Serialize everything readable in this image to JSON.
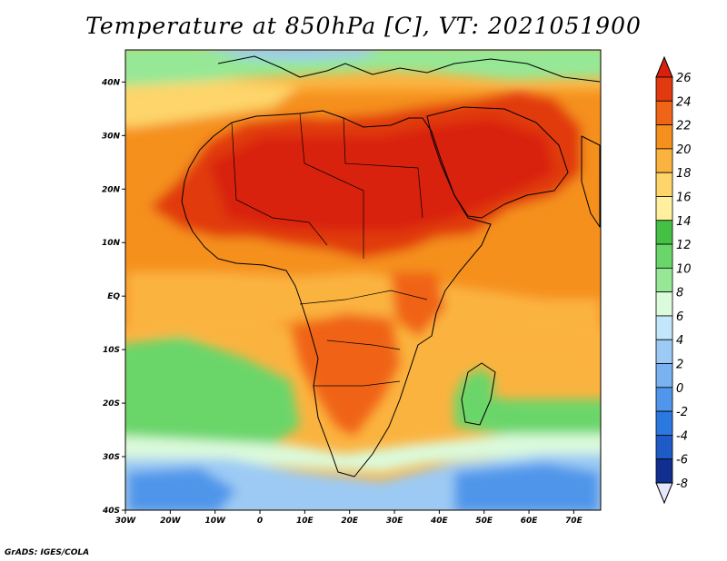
{
  "title": "Temperature at 850hPa [C], VT: 2021051900",
  "credit": "GrADS: IGES/COLA",
  "map": {
    "lon_range": [
      -30,
      76
    ],
    "lat_range": [
      -40,
      46
    ],
    "lat_ticks": [
      {
        "value": 40,
        "label": "40N"
      },
      {
        "value": 30,
        "label": "30N"
      },
      {
        "value": 20,
        "label": "20N"
      },
      {
        "value": 10,
        "label": "10N"
      },
      {
        "value": 0,
        "label": "EQ"
      },
      {
        "value": -10,
        "label": "10S"
      },
      {
        "value": -20,
        "label": "20S"
      },
      {
        "value": -30,
        "label": "30S"
      },
      {
        "value": -40,
        "label": "40S"
      }
    ],
    "lon_ticks": [
      {
        "value": -30,
        "label": "30W"
      },
      {
        "value": -20,
        "label": "20W"
      },
      {
        "value": -10,
        "label": "10W"
      },
      {
        "value": 0,
        "label": "0"
      },
      {
        "value": 10,
        "label": "10E"
      },
      {
        "value": 20,
        "label": "20E"
      },
      {
        "value": 30,
        "label": "30E"
      },
      {
        "value": 40,
        "label": "40E"
      },
      {
        "value": 50,
        "label": "50E"
      },
      {
        "value": 60,
        "label": "60E"
      },
      {
        "value": 70,
        "label": "70E"
      }
    ]
  },
  "colorbar": {
    "labels": [
      "26",
      "24",
      "22",
      "20",
      "18",
      "16",
      "14",
      "12",
      "10",
      "8",
      "6",
      "4",
      "2",
      "0",
      "-2",
      "-4",
      "-6",
      "-8"
    ],
    "colors": [
      "#e13a10",
      "#f06418",
      "#f5901f",
      "#fbb33f",
      "#fdd56b",
      "#fff0a0",
      "#44c044",
      "#6ad66a",
      "#96e896",
      "#dcfadc",
      "#c4e6fa",
      "#9ccaf4",
      "#78b2f0",
      "#5096ea",
      "#2a78e0",
      "#1e5ac8",
      "#102f90"
    ],
    "over_color": "#d8200c",
    "under_color": "#e6e6fa"
  }
}
